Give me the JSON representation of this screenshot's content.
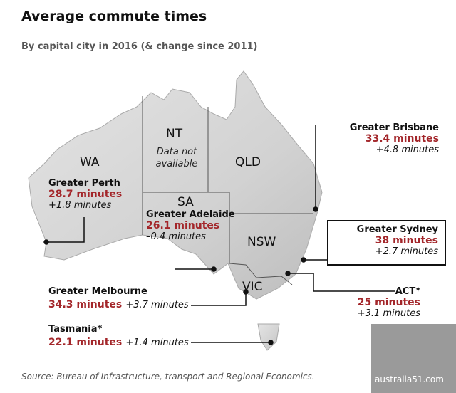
{
  "header": {
    "title": "Average commute times",
    "subtitle": "By capital city in 2016 (& change since 2011)"
  },
  "regions": [
    {
      "label": "WA"
    },
    {
      "label": "NT",
      "note": "Data not available"
    },
    {
      "label": "QLD"
    },
    {
      "label": "SA"
    },
    {
      "label": "NSW"
    },
    {
      "label": "VIC"
    }
  ],
  "cities": [
    {
      "name": "Greater Perth",
      "time": "28.7 minutes",
      "change": "+1.8 minutes"
    },
    {
      "name": "Greater Adelaide",
      "time": "26.1 minutes",
      "change": "–0.4 minutes"
    },
    {
      "name": "Greater Brisbane",
      "time": "33.4 minutes",
      "change": "+4.8 minutes"
    },
    {
      "name": "Greater Sydney",
      "time": "38 minutes",
      "change": "+2.7 minutes"
    },
    {
      "name": "ACT*",
      "time": "25 minutes",
      "change": "+3.1 minutes"
    },
    {
      "name": "Greater Melbourne",
      "time": "34.3 minutes",
      "change": "+3.7 minutes"
    },
    {
      "name": "Tasmania*",
      "time": "22.1 minutes",
      "change": "+1.4 minutes"
    }
  ],
  "source": "Source: Bureau of Infrastructure, transport and Regional Economics.",
  "watermark": "australia51.com"
}
